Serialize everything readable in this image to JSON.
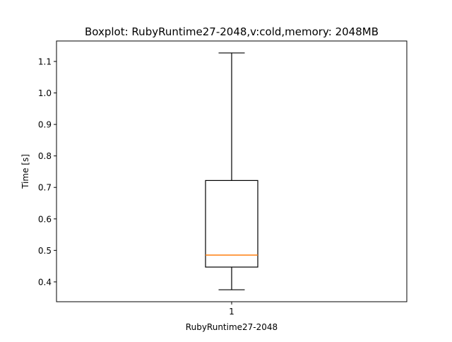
{
  "chart_data": {
    "type": "boxplot",
    "title": "Boxplot: RubyRuntime27-2048,v:cold,memory: 2048MB",
    "xlabel": "RubyRuntime27-2048",
    "ylabel": "Time [s]",
    "categories": [
      "1"
    ],
    "ylim": [
      0.337,
      1.165
    ],
    "yticks": [
      0.4,
      0.5,
      0.6,
      0.7,
      0.8,
      0.9,
      1.0,
      1.1
    ],
    "ytick_labels": [
      "0.4",
      "0.5",
      "0.6",
      "0.7",
      "0.8",
      "0.9",
      "1.0",
      "1.1"
    ],
    "grid": false,
    "series": [
      {
        "whisker_low": 0.375,
        "q1": 0.447,
        "median": 0.485,
        "q3": 0.722,
        "whisker_high": 1.127
      }
    ],
    "colors": {
      "box": "#000000",
      "median": "#ff7f0e",
      "axes": "#000000"
    }
  }
}
